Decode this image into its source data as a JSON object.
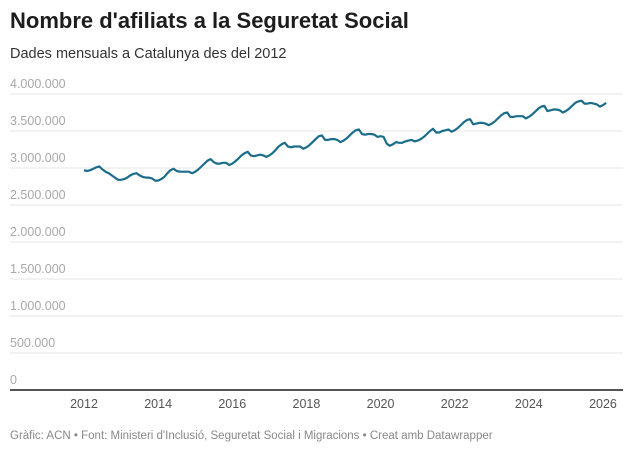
{
  "title": "Nombre d'afiliats a la Seguretat Social",
  "subtitle": "Dades mensuals a Catalunya des del 2012",
  "footer": "Gràfic: ACN • Font: Ministeri d'Inclusió, Seguretat Social i Migracions • Creat amb Datawrapper",
  "colors": {
    "line": "#1b6d8a",
    "grid": "#e6e6e6",
    "baseline": "#555555"
  },
  "chart_data": {
    "type": "line",
    "title": "Nombre d'afiliats a la Seguretat Social",
    "xlabel": "",
    "ylabel": "",
    "ylim": [
      0,
      4000000
    ],
    "xlim": [
      2012,
      2026.2
    ],
    "yticks": [
      0,
      500000,
      1000000,
      1500000,
      2000000,
      2500000,
      3000000,
      3500000,
      4000000
    ],
    "ytick_labels": [
      "0",
      "500.000",
      "1.000.000",
      "1.500.000",
      "2.000.000",
      "2.500.000",
      "3.000.000",
      "3.500.000",
      "4.000.000"
    ],
    "xticks": [
      2012,
      2014,
      2016,
      2018,
      2020,
      2022,
      2024,
      2026
    ],
    "xtick_labels": [
      "2012",
      "2014",
      "2016",
      "2018",
      "2020",
      "2022",
      "2024",
      "2026"
    ],
    "grid": true,
    "start": "2012-01",
    "frequency": "monthly",
    "series": [
      {
        "name": "Afiliats",
        "values": [
          2970000,
          2960000,
          2970000,
          2990000,
          3010000,
          3020000,
          2980000,
          2950000,
          2930000,
          2900000,
          2870000,
          2840000,
          2840000,
          2850000,
          2870000,
          2900000,
          2920000,
          2930000,
          2900000,
          2880000,
          2870000,
          2870000,
          2860000,
          2830000,
          2830000,
          2850000,
          2880000,
          2930000,
          2970000,
          2990000,
          2960000,
          2950000,
          2950000,
          2950000,
          2950000,
          2930000,
          2950000,
          2980000,
          3020000,
          3060000,
          3100000,
          3120000,
          3080000,
          3060000,
          3060000,
          3070000,
          3070000,
          3040000,
          3060000,
          3090000,
          3130000,
          3170000,
          3200000,
          3220000,
          3170000,
          3160000,
          3170000,
          3180000,
          3170000,
          3150000,
          3170000,
          3200000,
          3240000,
          3290000,
          3320000,
          3340000,
          3290000,
          3280000,
          3290000,
          3290000,
          3290000,
          3260000,
          3280000,
          3310000,
          3350000,
          3390000,
          3430000,
          3440000,
          3380000,
          3380000,
          3390000,
          3390000,
          3380000,
          3350000,
          3370000,
          3400000,
          3440000,
          3480000,
          3510000,
          3520000,
          3460000,
          3450000,
          3460000,
          3460000,
          3450000,
          3420000,
          3430000,
          3420000,
          3330000,
          3300000,
          3320000,
          3350000,
          3340000,
          3340000,
          3360000,
          3370000,
          3380000,
          3360000,
          3370000,
          3390000,
          3420000,
          3460000,
          3500000,
          3530000,
          3480000,
          3480000,
          3500000,
          3510000,
          3520000,
          3490000,
          3510000,
          3540000,
          3580000,
          3620000,
          3650000,
          3660000,
          3590000,
          3600000,
          3610000,
          3610000,
          3600000,
          3580000,
          3600000,
          3630000,
          3670000,
          3710000,
          3740000,
          3750000,
          3690000,
          3690000,
          3700000,
          3700000,
          3700000,
          3670000,
          3690000,
          3720000,
          3760000,
          3800000,
          3830000,
          3840000,
          3770000,
          3780000,
          3790000,
          3790000,
          3780000,
          3750000,
          3770000,
          3800000,
          3840000,
          3880000,
          3900000,
          3910000,
          3870000,
          3870000,
          3880000,
          3870000,
          3860000,
          3830000,
          3850000,
          3880000
        ]
      }
    ]
  }
}
